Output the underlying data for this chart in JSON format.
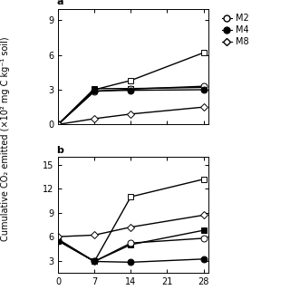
{
  "ylabel": "Cumulative CO₂ emitted (×10² mg C kg⁻¹ soil)",
  "x_ticks": [
    0,
    7,
    14,
    21,
    28
  ],
  "panel_a": {
    "ylim": [
      0,
      10
    ],
    "yticks": [
      0,
      3,
      6,
      9
    ],
    "yticklabels": [
      "0",
      "3",
      "6",
      "9"
    ],
    "series_order": [
      "open_square",
      "filled_square",
      "open_circle",
      "filled_circle",
      "open_diamond"
    ],
    "series": {
      "open_square": {
        "x": [
          0,
          7,
          14,
          28
        ],
        "y": [
          0,
          3.0,
          3.8,
          6.2
        ],
        "marker": "s",
        "filled": false
      },
      "filled_square": {
        "x": [
          0,
          7,
          14,
          28
        ],
        "y": [
          0,
          3.1,
          3.1,
          3.2
        ],
        "marker": "s",
        "filled": true
      },
      "open_circle": {
        "x": [
          0,
          7,
          14,
          28
        ],
        "y": [
          0,
          2.85,
          3.05,
          3.3
        ],
        "marker": "o",
        "filled": false
      },
      "filled_circle": {
        "x": [
          0,
          7,
          14,
          28
        ],
        "y": [
          0,
          2.9,
          2.95,
          3.0
        ],
        "marker": "o",
        "filled": true
      },
      "open_diamond": {
        "x": [
          0,
          7,
          14,
          28
        ],
        "y": [
          0,
          0.5,
          0.9,
          1.5
        ],
        "marker": "D",
        "filled": false
      }
    }
  },
  "panel_b": {
    "ylim": [
      1.5,
      16
    ],
    "yticks": [
      3,
      6,
      9,
      12,
      15
    ],
    "yticklabels": [
      "3",
      "6",
      "9",
      "12",
      "15"
    ],
    "series_order": [
      "open_square",
      "filled_square",
      "open_circle",
      "filled_circle",
      "open_diamond"
    ],
    "series": {
      "open_square": {
        "x": [
          0,
          7,
          14,
          28
        ],
        "y": [
          5.7,
          2.9,
          11.0,
          13.2
        ],
        "marker": "s",
        "filled": false
      },
      "filled_square": {
        "x": [
          0,
          7,
          14,
          28
        ],
        "y": [
          5.5,
          2.9,
          5.0,
          6.8
        ],
        "marker": "s",
        "filled": true
      },
      "open_circle": {
        "x": [
          0,
          7,
          14,
          28
        ],
        "y": [
          5.6,
          2.9,
          5.2,
          5.8
        ],
        "marker": "o",
        "filled": false
      },
      "filled_circle": {
        "x": [
          0,
          7,
          14,
          28
        ],
        "y": [
          5.5,
          2.9,
          2.8,
          3.2
        ],
        "marker": "o",
        "filled": true
      },
      "open_diamond": {
        "x": [
          0,
          7,
          14,
          28
        ],
        "y": [
          6.0,
          6.2,
          7.2,
          8.7
        ],
        "marker": "D",
        "filled": false
      }
    }
  },
  "legend": [
    {
      "label": "M2",
      "marker": "o",
      "filled": false
    },
    {
      "label": "M4",
      "marker": "o",
      "filled": true
    },
    {
      "label": "M8",
      "marker": "D",
      "filled": false
    }
  ],
  "markersize": 5,
  "linewidth": 1.0,
  "fontsize": 7
}
